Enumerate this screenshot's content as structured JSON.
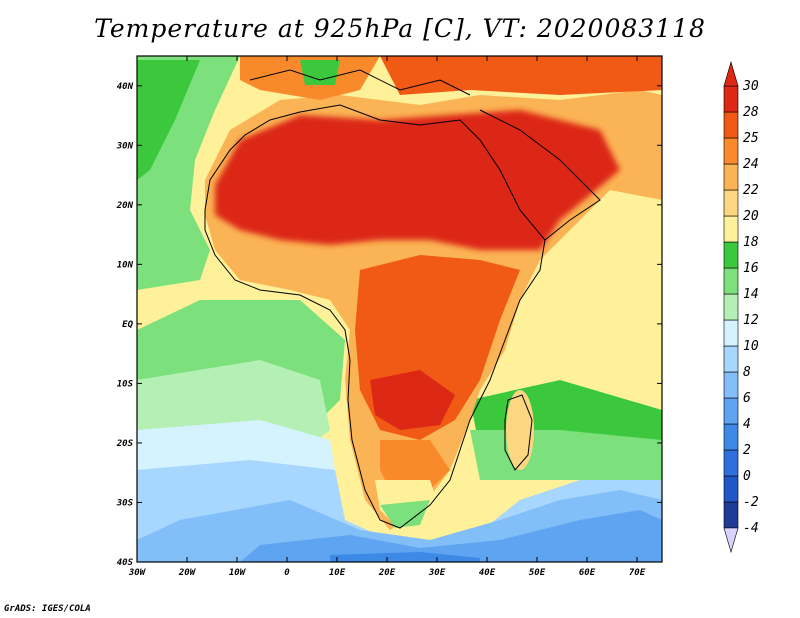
{
  "title": "Temperature at 925hPa [C], VT: 2020083118",
  "credit": "GrADS: IGES/COLA",
  "map": {
    "lon_range": [
      -30,
      75
    ],
    "lat_range": [
      -40,
      45
    ],
    "lon_ticks": [
      {
        "value": -30,
        "label": "30W"
      },
      {
        "value": -20,
        "label": "20W"
      },
      {
        "value": -10,
        "label": "10W"
      },
      {
        "value": 0,
        "label": "0"
      },
      {
        "value": 10,
        "label": "10E"
      },
      {
        "value": 20,
        "label": "20E"
      },
      {
        "value": 30,
        "label": "30E"
      },
      {
        "value": 40,
        "label": "40E"
      },
      {
        "value": 50,
        "label": "50E"
      },
      {
        "value": 60,
        "label": "60E"
      },
      {
        "value": 70,
        "label": "70E"
      }
    ],
    "lat_ticks": [
      {
        "value": 40,
        "label": "40N"
      },
      {
        "value": 30,
        "label": "30N"
      },
      {
        "value": 20,
        "label": "20N"
      },
      {
        "value": 10,
        "label": "10N"
      },
      {
        "value": 0,
        "label": "EQ"
      },
      {
        "value": -10,
        "label": "10S"
      },
      {
        "value": -20,
        "label": "20S"
      },
      {
        "value": -30,
        "label": "30S"
      },
      {
        "value": -40,
        "label": "40S"
      }
    ]
  },
  "colorbar": {
    "labels": [
      "-4",
      "-2",
      "0",
      "2",
      "4",
      "6",
      "8",
      "10",
      "12",
      "14",
      "16",
      "18",
      "20",
      "22",
      "24",
      "25",
      "28",
      "30"
    ],
    "colors": [
      "#1e3c96",
      "#1f57c8",
      "#2d6fdc",
      "#3c8ae6",
      "#5ea4f0",
      "#82beF8",
      "#a7d6ff",
      "#d5f3ff",
      "#b4f0b4",
      "#7ce07c",
      "#3cc83c",
      "#fff09a",
      "#fcd680",
      "#fbb455",
      "#f88a2c",
      "#f05a14",
      "#dc2814"
    ]
  },
  "regions": [
    {
      "name": "ocean-cool-green",
      "color": "#7ce07c"
    },
    {
      "name": "land-hot-sahara",
      "color": "#dc2814"
    },
    {
      "name": "south-cold-ocean",
      "color": "#5ea4f0"
    }
  ]
}
